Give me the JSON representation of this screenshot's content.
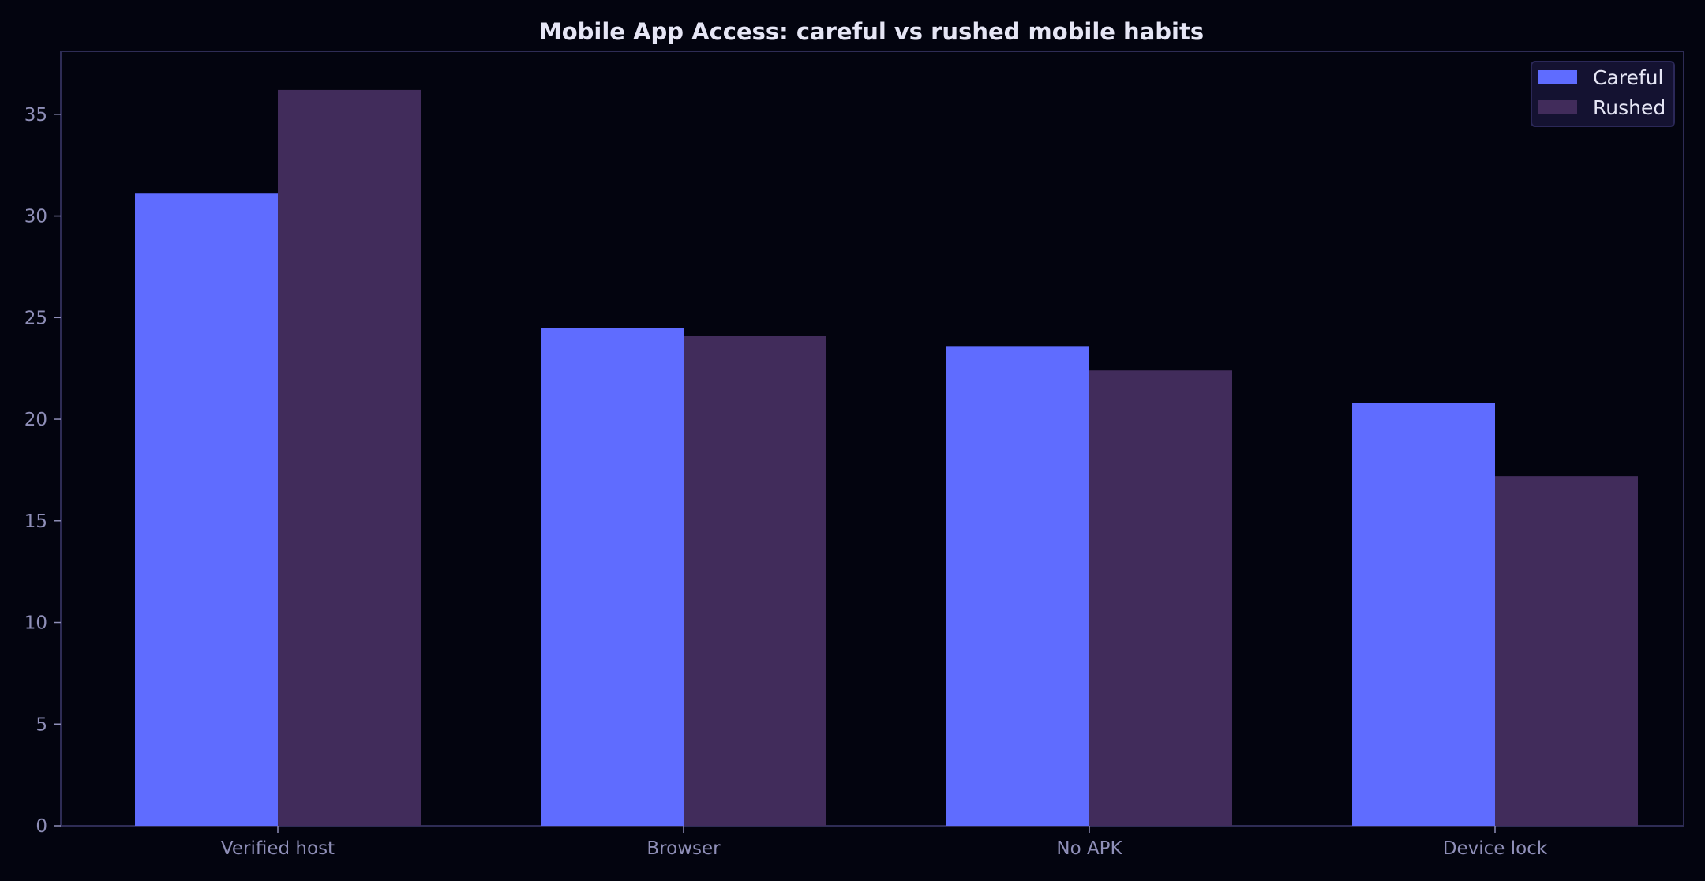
{
  "chart_data": {
    "type": "bar",
    "title": "Mobile App Access: careful vs rushed mobile habits",
    "xlabel": "",
    "ylabel": "",
    "categories": [
      "Verified host",
      "Browser",
      "No APK",
      "Device lock"
    ],
    "series": [
      {
        "name": "Careful",
        "values": [
          31.1,
          24.5,
          23.6,
          20.8
        ],
        "color": "#5f6cff"
      },
      {
        "name": "Rushed",
        "values": [
          36.2,
          24.1,
          22.4,
          17.2
        ],
        "color": "#412c5b"
      }
    ],
    "ylim": [
      0,
      38.1
    ],
    "yticks": [
      0,
      5,
      10,
      15,
      20,
      25,
      30,
      35
    ],
    "grid": false,
    "legend_position": "top-right"
  },
  "colors": {
    "background": "#03040f",
    "axis": "#2e2c55",
    "tick_text": "#8f8fb8",
    "title_text": "#e6e6f5",
    "legend_bg": "#141231",
    "legend_border": "#2b2858"
  }
}
